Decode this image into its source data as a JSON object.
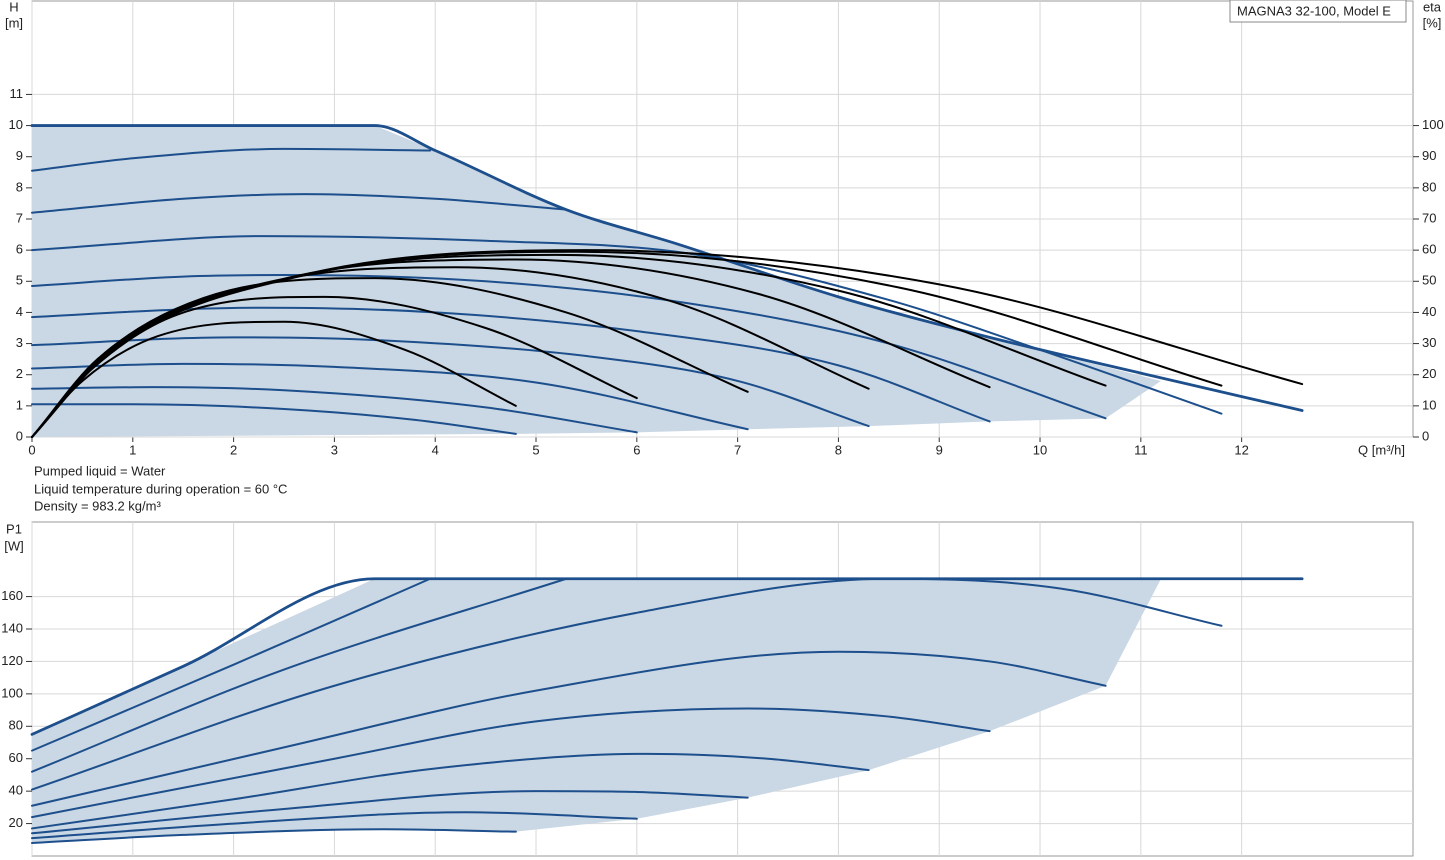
{
  "chart_data": [
    {
      "type": "line",
      "title": "MAGNA3 32-100, Model E",
      "ylabel": "H",
      "yunit": "[m]",
      "y2label": "eta",
      "y2unit": "[%]",
      "xlabel": "Q [m³/h]",
      "annotations": [
        "Pumped liquid = Water",
        "Liquid temperature during operation = 60 °C",
        "Density = 983.2 kg/m³"
      ],
      "xlim": [
        0,
        13.7
      ],
      "xticks": [
        0,
        1,
        2,
        3,
        4,
        5,
        6,
        7,
        8,
        9,
        10,
        11,
        12
      ],
      "ylim": [
        0,
        14
      ],
      "yticks": [
        0,
        1,
        2,
        3,
        4,
        5,
        6,
        7,
        8,
        9,
        10,
        11
      ],
      "y2lim": [
        0,
        140
      ],
      "y2ticks": [
        0,
        10,
        20,
        30,
        40,
        50,
        60,
        70,
        80,
        90,
        100
      ],
      "grid": true,
      "area": {
        "color": "#cad7e4",
        "x": [
          0,
          3.4,
          4,
          5.3,
          6.4,
          8,
          9.5,
          11.2,
          10.65,
          9.5,
          8.3,
          7.1,
          6,
          4.8,
          0
        ],
        "values": [
          10,
          10,
          9.2,
          7.3,
          6.2,
          4.5,
          3.2,
          1.8,
          0.6,
          0.5,
          0.35,
          0.25,
          0.15,
          0.1,
          0
        ]
      },
      "series": [
        {
          "color": "#1d4f8c",
          "x": [
            0,
            3.4,
            4,
            5.3,
            6.4,
            8,
            9.5,
            11,
            12.6
          ],
          "values": [
            10,
            10,
            9.2,
            7.3,
            6.2,
            4.5,
            3.2,
            2.05,
            0.85
          ]
        },
        {
          "color": "#1d4f8c",
          "x": [
            0,
            1,
            2.5,
            3.95
          ],
          "values": [
            8.55,
            8.95,
            9.25,
            9.2
          ]
        },
        {
          "color": "#1d4f8c",
          "x": [
            0,
            1.5,
            2.7,
            4,
            5.3
          ],
          "values": [
            7.2,
            7.65,
            7.8,
            7.65,
            7.3
          ]
        },
        {
          "color": "#1d4f8c",
          "x": [
            0,
            2.3,
            4.5,
            6.5,
            8.5,
            10,
            11.8
          ],
          "values": [
            6.0,
            6.45,
            6.3,
            5.9,
            4.4,
            2.8,
            0.75
          ]
        },
        {
          "color": "#1d4f8c",
          "x": [
            0,
            1.5,
            2.5,
            4.5,
            6.5,
            8.5,
            10.65
          ],
          "values": [
            4.85,
            5.15,
            5.2,
            5.0,
            4.3,
            3.0,
            0.6
          ]
        },
        {
          "color": "#1d4f8c",
          "x": [
            0,
            1.5,
            2.3,
            4,
            6,
            8,
            9.5
          ],
          "values": [
            3.85,
            4.1,
            4.15,
            4.0,
            3.4,
            2.3,
            0.5
          ]
        },
        {
          "color": "#1d4f8c",
          "x": [
            0,
            2,
            3.5,
            5.5,
            7,
            8.3
          ],
          "values": [
            2.95,
            3.2,
            3.1,
            2.6,
            1.8,
            0.35
          ]
        },
        {
          "color": "#1d4f8c",
          "x": [
            0,
            1.5,
            3,
            5,
            7.1
          ],
          "values": [
            2.2,
            2.35,
            2.25,
            1.75,
            0.25
          ]
        },
        {
          "color": "#1d4f8c",
          "x": [
            0,
            1.2,
            2.5,
            4.5,
            6
          ],
          "values": [
            1.55,
            1.6,
            1.5,
            0.95,
            0.15
          ]
        },
        {
          "color": "#1d4f8c",
          "x": [
            0,
            1,
            2.5,
            3.8,
            4.8
          ],
          "values": [
            1.05,
            1.05,
            0.9,
            0.55,
            0.1
          ]
        },
        {
          "color": "#000000",
          "axis": "y2",
          "x": [
            0,
            0.5,
            1.25,
            2.5,
            3.7,
            4.8
          ],
          "values": [
            0,
            18,
            32.4,
            37,
            28,
            10
          ]
        },
        {
          "color": "#000000",
          "axis": "y2",
          "x": [
            0,
            0.6,
            1.45,
            2.9,
            4.5,
            6
          ],
          "values": [
            0,
            22,
            39.4,
            45,
            35,
            12.5
          ]
        },
        {
          "color": "#000000",
          "axis": "y2",
          "x": [
            0,
            0.65,
            1.7,
            3.4,
            5.3,
            7.1
          ],
          "values": [
            0,
            25,
            44.6,
            51,
            40,
            14.5
          ]
        },
        {
          "color": "#000000",
          "axis": "y2",
          "x": [
            0,
            0.7,
            2.1,
            4.2,
            6.3,
            8.3
          ],
          "values": [
            0,
            26,
            47.7,
            54.5,
            44,
            15.5
          ]
        },
        {
          "color": "#000000",
          "axis": "y2",
          "x": [
            0,
            0.75,
            2.4,
            4.8,
            7.2,
            9.5
          ],
          "values": [
            0,
            27,
            50,
            57,
            46,
            16
          ]
        },
        {
          "color": "#000000",
          "axis": "y2",
          "x": [
            0,
            0.8,
            2.6,
            5.2,
            8,
            10.65
          ],
          "values": [
            0,
            28,
            51.2,
            58.5,
            47,
            16.5
          ]
        },
        {
          "color": "#000000",
          "axis": "y2",
          "x": [
            0,
            0.8,
            2.7,
            5.4,
            8.6,
            11.8
          ],
          "values": [
            0,
            28.5,
            52,
            59.5,
            48,
            16.5
          ]
        },
        {
          "color": "#000000",
          "axis": "y2",
          "x": [
            0,
            0.8,
            2.75,
            5.5,
            9,
            12.6
          ],
          "values": [
            0,
            29,
            52.5,
            60,
            49,
            17
          ]
        }
      ]
    },
    {
      "type": "line",
      "ylabel": "P1",
      "yunit": "[W]",
      "xlim": [
        0,
        13.7
      ],
      "xticks": [
        0,
        1,
        2,
        3,
        4,
        5,
        6,
        7,
        8,
        9,
        10,
        11,
        12
      ],
      "ylim": [
        0,
        206
      ],
      "yticks": [
        20,
        40,
        60,
        80,
        100,
        120,
        140,
        160
      ],
      "grid": true,
      "area": {
        "color": "#cad7e4",
        "x": [
          0,
          3.4,
          11.2,
          10.65,
          9.5,
          8.3,
          7.1,
          6,
          4.8,
          3.5,
          1.5,
          0
        ],
        "values": [
          75,
          171,
          171,
          105,
          77,
          53,
          36,
          23,
          15,
          16.5,
          13,
          8
        ]
      },
      "series": [
        {
          "color": "#1d4f8c",
          "x": [
            0,
            1.5,
            3.4,
            5,
            12.6
          ],
          "values": [
            75,
            117,
            171,
            171,
            171
          ]
        },
        {
          "color": "#1d4f8c",
          "x": [
            0,
            2,
            3.95
          ],
          "values": [
            65,
            118,
            171
          ]
        },
        {
          "color": "#1d4f8c",
          "x": [
            0,
            2.5,
            5.3
          ],
          "values": [
            52,
            115,
            171
          ]
        },
        {
          "color": "#1d4f8c",
          "x": [
            0,
            3,
            6,
            8.5,
            10.2,
            11.8
          ],
          "values": [
            41,
            105,
            150,
            171,
            165,
            142
          ]
        },
        {
          "color": "#1d4f8c",
          "x": [
            0,
            2.5,
            5,
            8,
            9.5,
            10.65
          ],
          "values": [
            31,
            67,
            102,
            126,
            120,
            105
          ]
        },
        {
          "color": "#1d4f8c",
          "x": [
            0,
            3,
            5,
            7.1,
            8.5,
            9.5
          ],
          "values": [
            24,
            60,
            83,
            91,
            86,
            77
          ]
        },
        {
          "color": "#1d4f8c",
          "x": [
            0,
            2,
            4,
            6.1,
            7.3,
            8.3
          ],
          "values": [
            17,
            35,
            54,
            63,
            60,
            53
          ]
        },
        {
          "color": "#1d4f8c",
          "x": [
            0,
            2.5,
            5,
            6,
            7.1
          ],
          "values": [
            14,
            29,
            40,
            39.5,
            36
          ]
        },
        {
          "color": "#1d4f8c",
          "x": [
            0,
            2,
            4.3,
            6
          ],
          "values": [
            11,
            20,
            27,
            23
          ]
        },
        {
          "color": "#1d4f8c",
          "x": [
            0,
            1.5,
            3.5,
            4.8
          ],
          "values": [
            8,
            13,
            16.5,
            15
          ]
        }
      ]
    }
  ]
}
